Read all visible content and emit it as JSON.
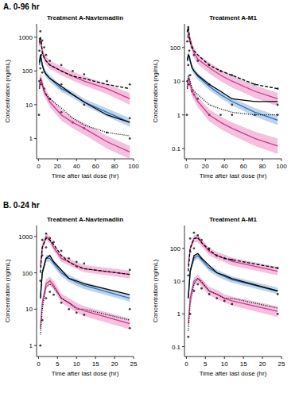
{
  "chart_data": [
    {
      "type": "line",
      "subtitle": "A. 0-96 hr",
      "title": "Treatment A-Navtemadlin",
      "x_label": "Time after last dose (hr)",
      "y_label": "Concentration (ng/mL)",
      "log": "y",
      "xlim": [
        -2,
        100
      ],
      "xticks": [
        0,
        20,
        40,
        60,
        80,
        100
      ],
      "ylim": [
        0.25,
        2500
      ],
      "yticks": [
        1,
        10,
        100,
        1000
      ],
      "x": [
        1,
        2,
        3,
        4,
        6,
        8,
        12,
        24,
        36,
        48,
        72,
        96
      ],
      "series": [
        {
          "type": "scatter",
          "marker": "circle",
          "color": "#000000",
          "x": [
            0.5,
            1,
            1,
            1.5,
            2,
            2,
            2.5,
            3,
            3,
            4,
            4,
            6,
            6,
            8,
            8,
            12,
            12,
            24,
            24,
            24,
            36,
            36,
            48,
            48,
            48,
            72,
            72,
            96,
            96,
            96
          ],
          "values": [
            5,
            50,
            400,
            900,
            1500,
            120,
            700,
            300,
            40,
            800,
            90,
            500,
            30,
            300,
            20,
            200,
            15,
            150,
            40,
            6,
            100,
            3,
            80,
            10,
            2,
            50,
            1.5,
            40,
            4,
            1
          ]
        },
        {
          "type": "line",
          "line_style": "solid",
          "color": "#d6338f",
          "values": [
            600,
            800,
            600,
            400,
            250,
            200,
            150,
            100,
            70,
            50,
            30,
            15
          ],
          "lower": [
            450,
            600,
            450,
            300,
            190,
            150,
            115,
            75,
            52,
            37,
            21,
            10
          ],
          "upper": [
            800,
            1050,
            800,
            530,
            330,
            270,
            200,
            135,
            95,
            70,
            42,
            22
          ]
        },
        {
          "type": "line",
          "line_style": "solid",
          "color": "#2a6fb8",
          "values": [
            150,
            250,
            220,
            150,
            100,
            80,
            60,
            30,
            20,
            12,
            6,
            3
          ],
          "lower": [
            120,
            200,
            175,
            120,
            80,
            64,
            48,
            24,
            16,
            9.5,
            4.5,
            2.2
          ],
          "upper": [
            185,
            310,
            270,
            185,
            125,
            100,
            75,
            37,
            25,
            15,
            7.8,
            4
          ]
        },
        {
          "type": "line",
          "line_style": "solid",
          "color": "#d6338f",
          "values": [
            30,
            60,
            55,
            40,
            25,
            20,
            12,
            5,
            3,
            2,
            0.8,
            0.4
          ],
          "lower": [
            20,
            42,
            38,
            28,
            17,
            14,
            8.5,
            3.4,
            2,
            1.3,
            0.5,
            0.25
          ],
          "upper": [
            42,
            85,
            78,
            57,
            36,
            28,
            17,
            7.2,
            4.3,
            2.9,
            1.2,
            0.6
          ]
        },
        {
          "type": "line",
          "line_style": "dashed",
          "color": "#000000",
          "values": [
            700,
            1000,
            700,
            350,
            250,
            200,
            150,
            100,
            70,
            60,
            40,
            30
          ]
        },
        {
          "type": "line",
          "line_style": "solid",
          "color": "#000000",
          "values": [
            180,
            300,
            230,
            150,
            100,
            80,
            60,
            35,
            20,
            12,
            5,
            3
          ]
        },
        {
          "type": "line",
          "line_style": "dotted",
          "color": "#000000",
          "values": [
            30,
            60,
            50,
            40,
            25,
            20,
            15,
            8,
            4,
            2.5,
            1.5,
            1.2
          ]
        }
      ]
    },
    {
      "type": "line",
      "title": "Treatment A-M1",
      "x_label": "Time after last dose (hr)",
      "y_label": "Concentration (ng/mL)",
      "log": "y",
      "xlim": [
        -2,
        100
      ],
      "xticks": [
        0,
        20,
        40,
        60,
        80,
        100
      ],
      "ylim": [
        0.05,
        500
      ],
      "yticks": [
        0.1,
        1,
        10,
        100
      ],
      "x": [
        1,
        2,
        3,
        4,
        6,
        8,
        12,
        24,
        36,
        48,
        72,
        96
      ],
      "series": [
        {
          "type": "scatter",
          "marker": "circle",
          "color": "#000000",
          "x": [
            0.5,
            1,
            1,
            1.5,
            2,
            2,
            2.5,
            3,
            3,
            4,
            4,
            6,
            6,
            8,
            8,
            12,
            12,
            24,
            24,
            24,
            36,
            36,
            48,
            48,
            48,
            72,
            72,
            96,
            96,
            96
          ],
          "values": [
            1,
            10,
            150,
            300,
            400,
            30,
            200,
            80,
            8,
            150,
            15,
            100,
            5,
            60,
            4,
            40,
            3,
            30,
            8,
            1,
            20,
            1,
            15,
            2,
            1,
            8,
            1,
            6,
            2,
            1
          ]
        },
        {
          "type": "line",
          "line_style": "solid",
          "color": "#d6338f",
          "values": [
            200,
            250,
            200,
            150,
            100,
            70,
            45,
            25,
            15,
            10,
            5,
            3
          ],
          "lower": [
            140,
            180,
            145,
            110,
            72,
            50,
            32,
            17,
            10,
            6.5,
            3.2,
            1.8
          ],
          "upper": [
            280,
            350,
            280,
            210,
            140,
            98,
            63,
            36,
            22,
            15,
            7.5,
            4.5
          ]
        },
        {
          "type": "line",
          "line_style": "solid",
          "color": "#2a6fb8",
          "values": [
            40,
            60,
            55,
            40,
            25,
            20,
            14,
            7,
            4,
            2.5,
            1.2,
            0.7
          ],
          "lower": [
            32,
            48,
            44,
            32,
            20,
            16,
            11,
            5.5,
            3.1,
            1.9,
            0.9,
            0.5
          ],
          "upper": [
            50,
            75,
            68,
            50,
            31,
            25,
            17.5,
            8.8,
            5,
            3.2,
            1.6,
            0.95
          ]
        },
        {
          "type": "line",
          "line_style": "solid",
          "color": "#d6338f",
          "values": [
            6,
            12,
            11,
            8,
            5,
            4,
            2.5,
            1,
            0.6,
            0.4,
            0.2,
            0.12
          ],
          "lower": [
            4,
            8,
            7.5,
            5.5,
            3.4,
            2.7,
            1.7,
            0.65,
            0.38,
            0.25,
            0.12,
            0.07
          ],
          "upper": [
            8.5,
            17,
            15.5,
            11,
            7,
            5.6,
            3.5,
            1.45,
            0.9,
            0.6,
            0.32,
            0.2
          ]
        },
        {
          "type": "line",
          "line_style": "dashed",
          "color": "#000000",
          "values": [
            300,
            400,
            250,
            150,
            100,
            80,
            60,
            30,
            20,
            15,
            8,
            6
          ]
        },
        {
          "type": "line",
          "line_style": "solid",
          "color": "#000000",
          "values": [
            40,
            60,
            55,
            40,
            25,
            20,
            15,
            8,
            5,
            3,
            2.5,
            2.5
          ]
        },
        {
          "type": "line",
          "line_style": "dotted",
          "color": "#000000",
          "values": [
            6,
            15,
            12,
            10,
            6,
            5,
            4,
            2,
            1.5,
            1.2,
            1,
            1
          ]
        }
      ]
    },
    {
      "type": "line",
      "subtitle": "B. 0-24 hr",
      "title": "Treatment A-Navtemadlin",
      "x_label": "Time after last dose (hr)",
      "y_label": "Concentration (ng/mL)",
      "log": "y",
      "xlim": [
        -0.5,
        25
      ],
      "xticks": [
        0,
        5,
        10,
        15,
        20,
        25
      ],
      "ylim": [
        0.5,
        2000
      ],
      "yticks": [
        1,
        10,
        100,
        1000
      ],
      "x": [
        0.5,
        1,
        2,
        3,
        4,
        6,
        8,
        10,
        12,
        24
      ],
      "series": [
        {
          "type": "scatter",
          "marker": "circle",
          "color": "#000000",
          "x": [
            0.5,
            0.5,
            1,
            1,
            1,
            2,
            2,
            2,
            3,
            3,
            4,
            4,
            6,
            6,
            8,
            8,
            10,
            10,
            12,
            12,
            24,
            24,
            24
          ],
          "values": [
            1,
            60,
            5,
            300,
            800,
            20,
            500,
            1200,
            30,
            900,
            25,
            700,
            15,
            400,
            10,
            250,
            8,
            200,
            7,
            180,
            3,
            120,
            10
          ]
        },
        {
          "type": "line",
          "line_style": "solid",
          "color": "#d6338f",
          "values": [
            150,
            500,
            1000,
            800,
            500,
            250,
            200,
            160,
            130,
            90
          ],
          "lower": [
            100,
            380,
            800,
            640,
            400,
            200,
            160,
            128,
            104,
            70
          ],
          "upper": [
            220,
            650,
            1250,
            1000,
            630,
            315,
            250,
            200,
            165,
            115
          ]
        },
        {
          "type": "line",
          "line_style": "solid",
          "color": "#2a6fb8",
          "values": [
            20,
            100,
            250,
            250,
            180,
            100,
            70,
            55,
            45,
            20
          ],
          "lower": [
            15,
            80,
            200,
            200,
            145,
            80,
            56,
            44,
            36,
            16
          ],
          "upper": [
            26,
            125,
            310,
            310,
            225,
            125,
            88,
            69,
            56,
            25
          ]
        },
        {
          "type": "line",
          "line_style": "solid",
          "color": "#d6338f",
          "values": [
            3,
            15,
            50,
            60,
            45,
            20,
            15,
            11,
            9,
            4
          ],
          "lower": [
            2,
            11,
            38,
            46,
            34,
            15,
            11,
            8,
            6.5,
            2.8
          ],
          "upper": [
            4.5,
            20,
            66,
            78,
            59,
            27,
            20,
            15,
            12,
            5.6
          ]
        },
        {
          "type": "line",
          "line_style": "dashed",
          "color": "#000000",
          "values": [
            100,
            500,
            900,
            800,
            600,
            300,
            200,
            150,
            130,
            90
          ]
        },
        {
          "type": "line",
          "line_style": "solid",
          "color": "#000000",
          "values": [
            20,
            100,
            250,
            300,
            200,
            120,
            70,
            60,
            50,
            25
          ]
        },
        {
          "type": "line",
          "line_style": "dotted",
          "color": "#000000",
          "values": [
            2,
            10,
            40,
            50,
            40,
            20,
            15,
            10,
            10,
            5
          ]
        }
      ]
    },
    {
      "type": "line",
      "title": "Treatment A-M1",
      "x_label": "Time after last dose (hr)",
      "y_label": "Concentration (ng/mL)",
      "log": "y",
      "xlim": [
        -0.5,
        25
      ],
      "xticks": [
        0,
        5,
        10,
        15,
        20,
        25
      ],
      "ylim": [
        0.05,
        500
      ],
      "yticks": [
        0.1,
        1,
        10,
        100
      ],
      "x": [
        0.5,
        1,
        2,
        3,
        4,
        6,
        8,
        10,
        12,
        24
      ],
      "series": [
        {
          "type": "scatter",
          "marker": "circle",
          "color": "#000000",
          "x": [
            0.5,
            0.5,
            1,
            1,
            1,
            2,
            2,
            2,
            3,
            3,
            4,
            4,
            6,
            6,
            8,
            8,
            10,
            10,
            12,
            12,
            24,
            24,
            24
          ],
          "values": [
            0.2,
            15,
            1,
            80,
            200,
            5,
            100,
            300,
            8,
            250,
            6,
            180,
            4,
            100,
            3,
            60,
            2.5,
            50,
            2,
            45,
            1,
            25,
            4
          ]
        },
        {
          "type": "line",
          "line_style": "solid",
          "color": "#d6338f",
          "values": [
            30,
            100,
            200,
            200,
            150,
            80,
            60,
            50,
            40,
            20
          ],
          "lower": [
            20,
            75,
            155,
            155,
            115,
            62,
            46,
            38,
            30,
            15
          ],
          "upper": [
            42,
            130,
            260,
            260,
            195,
            104,
            78,
            65,
            52,
            27
          ]
        },
        {
          "type": "line",
          "line_style": "solid",
          "color": "#2a6fb8",
          "values": [
            3,
            20,
            50,
            60,
            45,
            25,
            18,
            14,
            11,
            5
          ],
          "lower": [
            2.3,
            16,
            40,
            48,
            36,
            20,
            14,
            11,
            8.8,
            4
          ],
          "upper": [
            3.8,
            25,
            62,
            75,
            56,
            31,
            22.5,
            17.5,
            14,
            6.3
          ]
        },
        {
          "type": "line",
          "line_style": "solid",
          "color": "#d6338f",
          "values": [
            0.5,
            3,
            10,
            12,
            9,
            5,
            4,
            3,
            2.5,
            1.2
          ],
          "lower": [
            0.3,
            2.1,
            7.5,
            9,
            6.8,
            3.7,
            2.9,
            2.2,
            1.8,
            0.8
          ],
          "upper": [
            0.75,
            4.2,
            13,
            16,
            12,
            6.7,
            5.4,
            4,
            3.4,
            1.7
          ]
        },
        {
          "type": "line",
          "line_style": "dashed",
          "color": "#000000",
          "values": [
            20,
            100,
            200,
            220,
            150,
            90,
            60,
            50,
            45,
            25
          ]
        },
        {
          "type": "line",
          "line_style": "solid",
          "color": "#000000",
          "values": [
            3,
            20,
            60,
            70,
            50,
            30,
            18,
            15,
            12,
            5
          ]
        },
        {
          "type": "line",
          "line_style": "dotted",
          "color": "#000000",
          "values": [
            0.3,
            2,
            8,
            12,
            10,
            5,
            4,
            3,
            3,
            1.5
          ]
        }
      ]
    }
  ]
}
